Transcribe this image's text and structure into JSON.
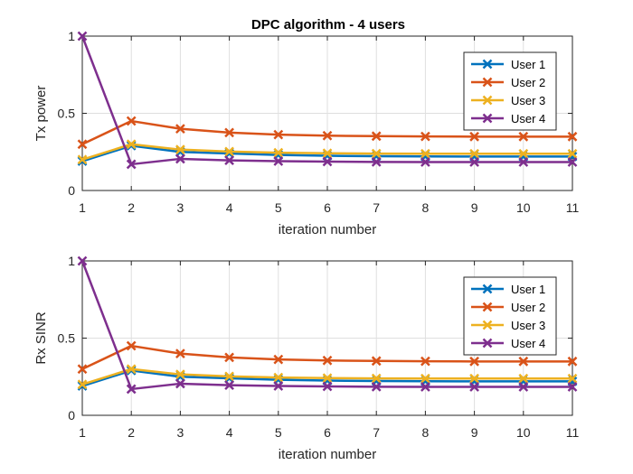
{
  "chart_data": [
    {
      "type": "line",
      "title": "DPC algorithm - 4 users",
      "xlabel": "iteration number",
      "ylabel": "Tx power",
      "xlim": [
        1,
        11
      ],
      "ylim": [
        0,
        1
      ],
      "xticks": [
        "1",
        "2",
        "3",
        "4",
        "5",
        "6",
        "7",
        "8",
        "9",
        "10",
        "11"
      ],
      "yticks": [
        "0",
        "0.5",
        "1"
      ],
      "grid": true,
      "legend": "top-right",
      "x": [
        1,
        2,
        3,
        4,
        5,
        6,
        7,
        8,
        9,
        10,
        11
      ],
      "series": [
        {
          "name": "User 1",
          "color": "#0072BD",
          "marker": "x",
          "values": [
            0.19,
            0.29,
            0.25,
            0.24,
            0.23,
            0.225,
            0.222,
            0.221,
            0.22,
            0.22,
            0.22
          ]
        },
        {
          "name": "User 2",
          "color": "#D95319",
          "marker": "x",
          "values": [
            0.3,
            0.45,
            0.4,
            0.375,
            0.362,
            0.355,
            0.352,
            0.35,
            0.349,
            0.349,
            0.349
          ]
        },
        {
          "name": "User 3",
          "color": "#EDB120",
          "marker": "x",
          "values": [
            0.2,
            0.3,
            0.265,
            0.252,
            0.245,
            0.241,
            0.239,
            0.238,
            0.238,
            0.238,
            0.238
          ]
        },
        {
          "name": "User 4",
          "color": "#7E2F8E",
          "marker": "x",
          "values": [
            1.0,
            0.17,
            0.205,
            0.195,
            0.19,
            0.187,
            0.185,
            0.184,
            0.184,
            0.184,
            0.184
          ]
        }
      ]
    },
    {
      "type": "line",
      "title": "",
      "xlabel": "iteration number",
      "ylabel": "Rx SINR",
      "xlim": [
        1,
        11
      ],
      "ylim": [
        0,
        1
      ],
      "xticks": [
        "1",
        "2",
        "3",
        "4",
        "5",
        "6",
        "7",
        "8",
        "9",
        "10",
        "11"
      ],
      "yticks": [
        "0",
        "0.5",
        "1"
      ],
      "grid": true,
      "legend": "top-right",
      "x": [
        1,
        2,
        3,
        4,
        5,
        6,
        7,
        8,
        9,
        10,
        11
      ],
      "series": [
        {
          "name": "User 1",
          "color": "#0072BD",
          "marker": "x",
          "values": [
            0.19,
            0.29,
            0.25,
            0.24,
            0.23,
            0.225,
            0.222,
            0.221,
            0.22,
            0.22,
            0.22
          ]
        },
        {
          "name": "User 2",
          "color": "#D95319",
          "marker": "x",
          "values": [
            0.3,
            0.45,
            0.4,
            0.375,
            0.362,
            0.355,
            0.352,
            0.35,
            0.349,
            0.349,
            0.349
          ]
        },
        {
          "name": "User 3",
          "color": "#EDB120",
          "marker": "x",
          "values": [
            0.2,
            0.3,
            0.265,
            0.252,
            0.245,
            0.241,
            0.239,
            0.238,
            0.238,
            0.238,
            0.238
          ]
        },
        {
          "name": "User 4",
          "color": "#7E2F8E",
          "marker": "x",
          "values": [
            1.0,
            0.17,
            0.205,
            0.195,
            0.19,
            0.187,
            0.185,
            0.184,
            0.184,
            0.184,
            0.184
          ]
        }
      ]
    }
  ]
}
